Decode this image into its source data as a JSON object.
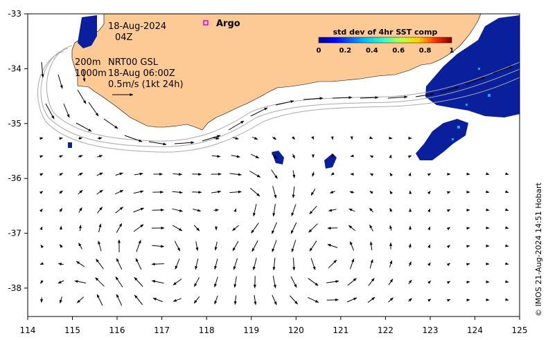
{
  "map": {
    "date_label": "18-Aug-2024",
    "time_label": "04Z",
    "legend_argo": "Argo",
    "contour_200": "200m",
    "contour_1000": "1000m",
    "model_label": "NRT00 GSL",
    "model_time": "18-Aug 06:00Z",
    "scale_label": "0.5m/s (1kt 24h)",
    "credit": "© IMOS 21-Aug-2024 14:51 Hobart",
    "x_ticks": [
      "114",
      "115",
      "116",
      "117",
      "118",
      "119",
      "120",
      "121",
      "122",
      "123",
      "124",
      "125"
    ],
    "y_ticks": [
      "-33",
      "-34",
      "-35",
      "-36",
      "-37",
      "-38"
    ],
    "lon_range": [
      114,
      125
    ],
    "lat_range": [
      -38.55,
      -33
    ],
    "colorbar": {
      "title": "std dev of 4hr SST comp",
      "ticks": [
        "0",
        "0.2",
        "0.4",
        "0.6",
        "0.8",
        "1"
      ]
    },
    "colors": {
      "land": "#fdc994",
      "data_pixels": "#0a1f9c",
      "argo_marker": "#e000e0",
      "contour": "#a8a8a8"
    }
  }
}
